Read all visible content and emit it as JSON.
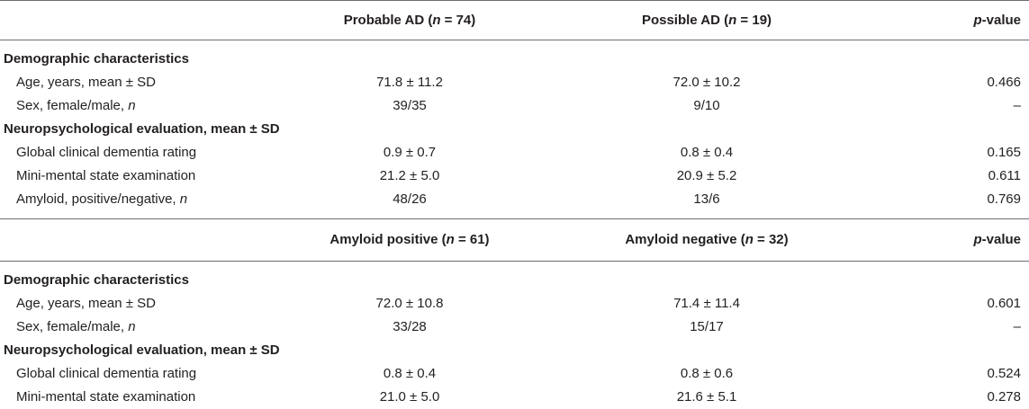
{
  "table1": {
    "header": {
      "col1": "",
      "col2_prefix": "Probable AD (",
      "col2_n": "n",
      "col2_suffix": " = 74)",
      "col3_prefix": "Possible AD (",
      "col3_n": "n",
      "col3_suffix": " = 19)",
      "pvalue_p": "p",
      "pvalue_rest": "-value"
    },
    "section1_title": "Demographic characteristics",
    "rows1": [
      {
        "label": "Age, years, mean ± SD",
        "label_italic": "",
        "v1": "71.8 ± 11.2",
        "v2": "72.0 ± 10.2",
        "p": "0.466"
      },
      {
        "label": "Sex, female/male, ",
        "label_italic": "n",
        "v1": "39/35",
        "v2": "9/10",
        "p": "–"
      }
    ],
    "section2_title": "Neuropsychological evaluation, mean ± SD",
    "rows2": [
      {
        "label": "Global clinical dementia rating",
        "label_italic": "",
        "v1": "0.9 ± 0.7",
        "v2": "0.8 ± 0.4",
        "p": "0.165"
      },
      {
        "label": "Mini-mental state examination",
        "label_italic": "",
        "v1": "21.2 ± 5.0",
        "v2": "20.9 ± 5.2",
        "p": "0.611"
      },
      {
        "label": "Amyloid, positive/negative, ",
        "label_italic": "n",
        "v1": "48/26",
        "v2": "13/6",
        "p": "0.769"
      }
    ]
  },
  "table2": {
    "header": {
      "col2_prefix": "Amyloid positive (",
      "col2_n": "n",
      "col2_suffix": " = 61)",
      "col3_prefix": "Amyloid negative (",
      "col3_n": "n",
      "col3_suffix": " = 32)",
      "pvalue_p": "p",
      "pvalue_rest": "-value"
    },
    "section1_title": "Demographic characteristics",
    "rows1": [
      {
        "label": "Age, years, mean ± SD",
        "label_italic": "",
        "v1": "72.0 ± 10.8",
        "v2": "71.4 ± 11.4",
        "p": "0.601"
      },
      {
        "label": "Sex, female/male, ",
        "label_italic": "n",
        "v1": "33/28",
        "v2": "15/17",
        "p": "–"
      }
    ],
    "section2_title": "Neuropsychological evaluation, mean ± SD",
    "rows2": [
      {
        "label": "Global clinical dementia rating",
        "label_italic": "",
        "v1": "0.8 ± 0.4",
        "v2": "0.8 ± 0.6",
        "p": "0.524"
      },
      {
        "label": "Mini-mental state examination",
        "label_italic": "",
        "v1": "21.0 ± 5.0",
        "v2": "21.6 ± 5.1",
        "p": "0.278"
      }
    ]
  }
}
